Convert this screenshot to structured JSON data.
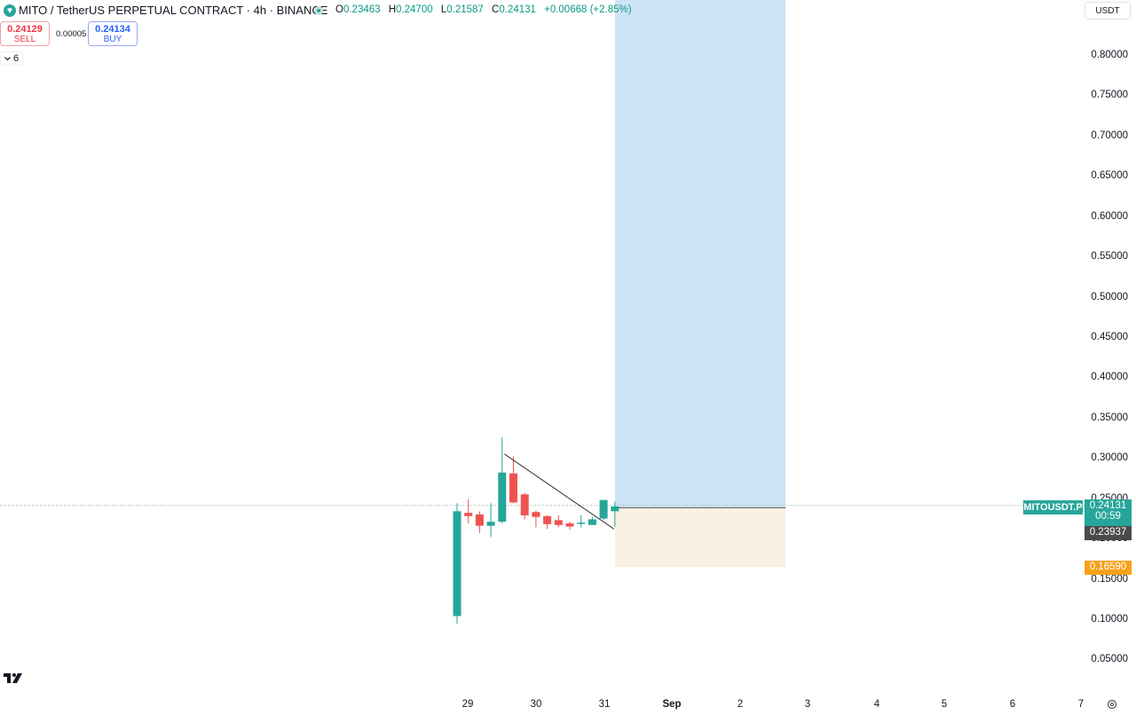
{
  "header": {
    "title": "MITO / TetherUS PERPETUAL CONTRACT · 4h · BINANCE",
    "ohlc": [
      {
        "label": "O",
        "value": "0.23463"
      },
      {
        "label": "H",
        "value": "0.24700"
      },
      {
        "label": "L",
        "value": "0.21587"
      },
      {
        "label": "C",
        "value": "0.24131"
      }
    ],
    "change": "+0.00668 (+2.85%)"
  },
  "trade": {
    "sell_price": "0.24129",
    "sell_label": "SELL",
    "spread": "0.00005",
    "buy_price": "0.24134",
    "buy_label": "BUY"
  },
  "indicators": {
    "count": "6"
  },
  "currency": "USDT",
  "y_axis_labels": [
    "0.80000",
    "0.75000",
    "0.70000",
    "0.65000",
    "0.60000",
    "0.55000",
    "0.50000",
    "0.45000",
    "0.40000",
    "0.35000",
    "0.30000",
    "0.25000",
    "0.20000",
    "0.15000",
    "0.10000",
    "0.05000"
  ],
  "x_axis_labels": [
    "29",
    "30",
    "31",
    "Sep",
    "2",
    "3",
    "4",
    "5",
    "6",
    "7"
  ],
  "price_tags": {
    "symbol": "MITOUSDT.P",
    "last_price": "0.24131",
    "countdown": "00:59",
    "entry": "0.23937",
    "stop": "0.16590"
  },
  "position": {
    "entry": 0.23937,
    "target": 0.88,
    "stop": 0.1659,
    "target_color": "#cfe3f8",
    "stop_color": "#f8f1e1"
  },
  "colors": {
    "up": "#26a69a",
    "down": "#ef5350",
    "last_price": "#26a69a",
    "entry_tag": "#4a4a4a",
    "stop_tag": "#f7a11a"
  },
  "chart_data": {
    "type": "candlestick",
    "candles": [
      {
        "o": 0.105,
        "h": 0.245,
        "l": 0.095,
        "c": 0.235
      },
      {
        "o": 0.233,
        "h": 0.25,
        "l": 0.22,
        "c": 0.229
      },
      {
        "o": 0.231,
        "h": 0.235,
        "l": 0.208,
        "c": 0.217
      },
      {
        "o": 0.217,
        "h": 0.245,
        "l": 0.203,
        "c": 0.222
      },
      {
        "o": 0.222,
        "h": 0.327,
        "l": 0.22,
        "c": 0.283
      },
      {
        "o": 0.282,
        "h": 0.303,
        "l": 0.245,
        "c": 0.246
      },
      {
        "o": 0.256,
        "h": 0.258,
        "l": 0.225,
        "c": 0.23
      },
      {
        "o": 0.234,
        "h": 0.236,
        "l": 0.215,
        "c": 0.228
      },
      {
        "o": 0.229,
        "h": 0.23,
        "l": 0.213,
        "c": 0.219
      },
      {
        "o": 0.224,
        "h": 0.23,
        "l": 0.215,
        "c": 0.218
      },
      {
        "o": 0.22,
        "h": 0.222,
        "l": 0.212,
        "c": 0.216
      },
      {
        "o": 0.221,
        "h": 0.23,
        "l": 0.215,
        "c": 0.221
      },
      {
        "o": 0.218,
        "h": 0.228,
        "l": 0.218,
        "c": 0.225
      },
      {
        "o": 0.226,
        "h": 0.248,
        "l": 0.224,
        "c": 0.249
      },
      {
        "o": 0.235,
        "h": 0.247,
        "l": 0.216,
        "c": 0.241
      }
    ],
    "trendline": [
      {
        "candle": 4.2,
        "price": 0.306
      },
      {
        "candle": 14,
        "price": 0.213
      }
    ]
  }
}
